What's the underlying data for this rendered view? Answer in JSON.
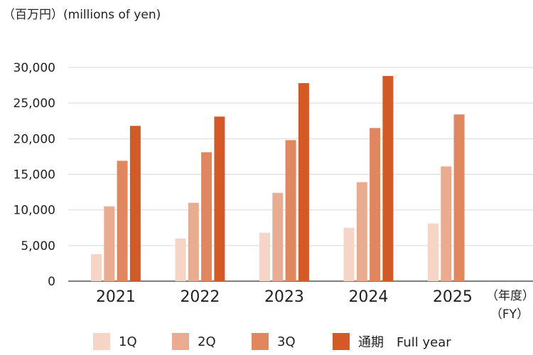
{
  "unit_label": "（百万円）(millions of yen)",
  "fy_label_line1": "（年度）",
  "fy_label_line2": "（FY）",
  "colors": {
    "q1": "#f6d4c6",
    "q2": "#eaac90",
    "q3": "#e08760",
    "full": "#d35a26",
    "grid": "#d9d9d9",
    "axis": "#333333"
  },
  "chart_data": {
    "type": "bar",
    "categories": [
      "2021",
      "2022",
      "2023",
      "2024",
      "2025"
    ],
    "series": [
      {
        "name": "1Q",
        "values": [
          3800,
          6000,
          6800,
          7500,
          8100
        ]
      },
      {
        "name": "2Q",
        "values": [
          10500,
          11000,
          12400,
          13900,
          16100
        ]
      },
      {
        "name": "3Q",
        "values": [
          16900,
          18100,
          19800,
          21500,
          23400
        ]
      },
      {
        "name": "通期　Full year",
        "values": [
          21800,
          23100,
          27800,
          28800,
          null
        ]
      }
    ],
    "ylim": [
      0,
      30000
    ],
    "yticks": [
      0,
      5000,
      10000,
      15000,
      20000,
      25000,
      30000
    ],
    "ytick_labels": [
      "0",
      "5,000",
      "10,000",
      "15,000",
      "20,000",
      "25,000",
      "30,000"
    ],
    "grid": true,
    "legend_position": "bottom"
  }
}
